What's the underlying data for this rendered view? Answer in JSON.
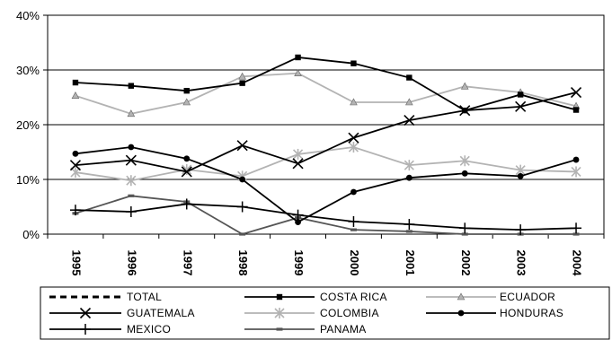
{
  "chart_data": {
    "type": "line",
    "x": [
      "1995",
      "1996",
      "1997",
      "1998",
      "1999",
      "2000",
      "2001",
      "2002",
      "2003",
      "2004"
    ],
    "y_ticks": [
      "0%",
      "10%",
      "20%",
      "30%",
      "40%"
    ],
    "ylim": [
      0,
      40
    ],
    "grid": "horizontal",
    "legend_position": "bottom",
    "series": [
      {
        "name": "TOTAL",
        "color": "#000000",
        "marker": "none",
        "dash": true,
        "values": [
          null,
          null,
          null,
          null,
          null,
          null,
          null,
          null,
          null,
          null
        ]
      },
      {
        "name": "COSTA RICA",
        "color": "#000000",
        "marker": "square",
        "values": [
          27.7,
          27.1,
          26.2,
          27.6,
          32.3,
          31.2,
          28.6,
          22.6,
          25.5,
          22.7
        ]
      },
      {
        "name": "ECUADOR",
        "color": "#b3b3b3",
        "marker": "triangle",
        "values": [
          25.3,
          22.0,
          24.1,
          28.8,
          29.4,
          24.1,
          24.1,
          27.0,
          25.9,
          23.4
        ]
      },
      {
        "name": "GUATEMALA",
        "color": "#000000",
        "marker": "x",
        "values": [
          12.6,
          13.5,
          11.4,
          16.2,
          12.9,
          17.6,
          20.8,
          22.6,
          23.3,
          25.9
        ]
      },
      {
        "name": "COLOMBIA",
        "color": "#b3b3b3",
        "marker": "star",
        "values": [
          11.3,
          9.8,
          11.8,
          10.6,
          14.6,
          15.9,
          12.6,
          13.4,
          11.7,
          11.4
        ]
      },
      {
        "name": "HONDURAS",
        "color": "#000000",
        "marker": "circle",
        "values": [
          14.7,
          15.9,
          13.8,
          10.0,
          2.2,
          7.7,
          10.3,
          11.1,
          10.6,
          13.6
        ]
      },
      {
        "name": "MEXICO",
        "color": "#000000",
        "marker": "plus",
        "values": [
          4.4,
          4.1,
          5.5,
          5.0,
          3.5,
          2.3,
          1.8,
          1.1,
          0.8,
          1.1
        ]
      },
      {
        "name": "PANAMA",
        "color": "#555555",
        "marker": "dash",
        "values": [
          3.8,
          7.0,
          5.9,
          0.0,
          3.0,
          0.8,
          0.5,
          0.0,
          0.0,
          0.0
        ]
      }
    ]
  }
}
